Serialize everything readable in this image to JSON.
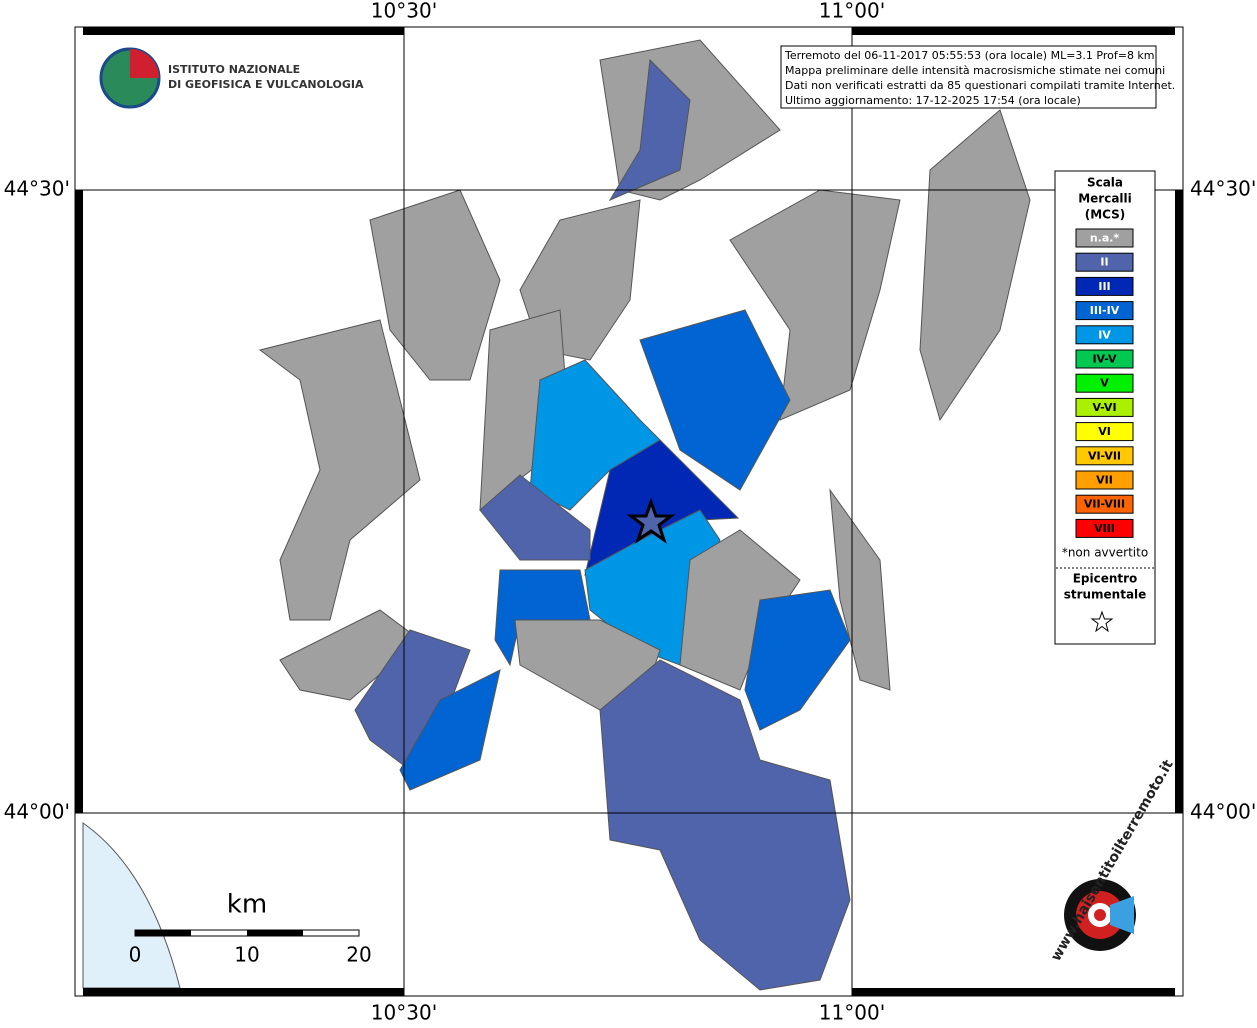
{
  "axes": {
    "top": [
      "10°30'",
      "11°00'"
    ],
    "bottom": [
      "10°30'",
      "11°00'"
    ],
    "left": [
      "44°30'",
      "44°00'"
    ],
    "right": [
      "44°30'",
      "44°00'"
    ]
  },
  "info": [
    "Terremoto del 06-11-2017 05:55:53 (ora locale) ML=3.1 Prof=8 km",
    "Mappa preliminare delle intensità macrosismiche stimate nei comuni",
    "Dati non verificati estratti da 85 questionari compilati tramite Internet.",
    "Ultimo aggiornamento: 17-12-2025 17:54 (ora locale)"
  ],
  "logo": [
    "ISTITUTO NAZIONALE",
    "DI GEOFISICA E VULCANOLOGIA"
  ],
  "legend": {
    "title": [
      "Scala",
      "Mercalli",
      "(MCS)"
    ],
    "items": [
      {
        "label": "n.a.*",
        "color": "#a0a0a0"
      },
      {
        "label": "II",
        "color": "#4f64aa"
      },
      {
        "label": "III",
        "color": "#0028b4"
      },
      {
        "label": "III-IV",
        "color": "#0064d2"
      },
      {
        "label": "IV",
        "color": "#0096e6"
      },
      {
        "label": "IV-V",
        "color": "#00c850"
      },
      {
        "label": "V",
        "color": "#00f000"
      },
      {
        "label": "V-VI",
        "color": "#aaf000"
      },
      {
        "label": "VI",
        "color": "#ffff00"
      },
      {
        "label": "VI-VII",
        "color": "#ffc800"
      },
      {
        "label": "VII",
        "color": "#ffa000"
      },
      {
        "label": "VII-VIII",
        "color": "#ff6400"
      },
      {
        "label": "VIII",
        "color": "#ff0000"
      }
    ],
    "note": "*non avvertito",
    "epicenter": [
      "Epicentro",
      "strumentale"
    ]
  },
  "scale": {
    "unit": "km",
    "labels": [
      "0",
      "10",
      "20"
    ]
  },
  "badge": "www.haisentitoilterremoto.it"
}
